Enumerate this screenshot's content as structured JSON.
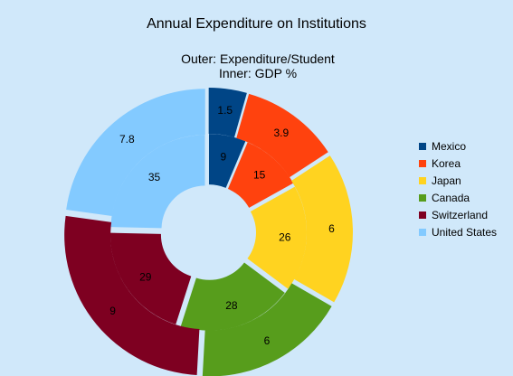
{
  "colors": {
    "background": "#d0e8fa",
    "Mexico": "#004586",
    "Korea": "#ff420e",
    "Japan": "#ffd320",
    "Canada": "#579d1c",
    "Switzerland": "#7e0021",
    "United States": "#83caff"
  },
  "chart_data": {
    "type": "pie",
    "subtype": "donut",
    "title": "Annual Expenditure on Institutions",
    "subtitle_lines": [
      "Outer: Expenditure/Student",
      "Inner: GDP %"
    ],
    "categories": [
      "Mexico",
      "Korea",
      "Japan",
      "Canada",
      "Switzerland",
      "United States"
    ],
    "series": [
      {
        "ring": "inner",
        "values": [
          9,
          15,
          26,
          28,
          29,
          35
        ]
      },
      {
        "ring": "outer",
        "values": [
          1.5,
          3.9,
          6,
          6,
          9,
          7.8
        ]
      }
    ],
    "legend_position": "right"
  }
}
